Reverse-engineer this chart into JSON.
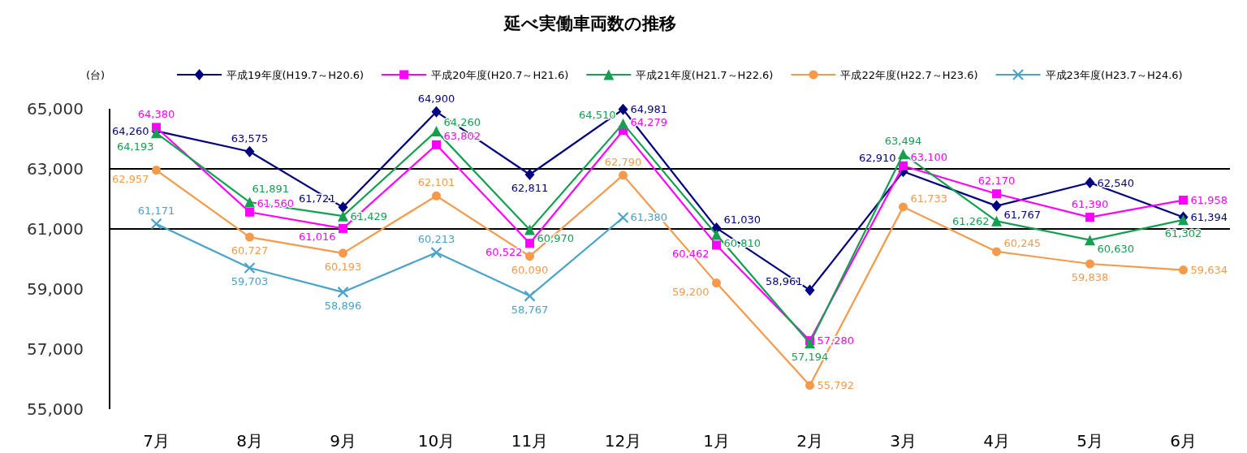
{
  "chart_data": {
    "type": "line",
    "title": "延べ実働車両数の推移",
    "ylabel": "(台)",
    "categories": [
      "7月",
      "8月",
      "9月",
      "10月",
      "11月",
      "12月",
      "1月",
      "2月",
      "3月",
      "4月",
      "5月",
      "6月"
    ],
    "ylim": [
      55000,
      65000
    ],
    "yticks": [
      {
        "value": 55000,
        "label": "55,000"
      },
      {
        "value": 57000,
        "label": "57,000"
      },
      {
        "value": 59000,
        "label": "59,000"
      },
      {
        "value": 61000,
        "label": "61,000"
      },
      {
        "value": 63000,
        "label": "63,000"
      },
      {
        "value": 65000,
        "label": "65,000"
      }
    ],
    "legend": "top",
    "ref_lines": [
      {
        "axis": "y",
        "value": 63000,
        "color": "#000000"
      },
      {
        "axis": "y",
        "value": 61000,
        "color": "#000000"
      }
    ],
    "series": [
      {
        "name": "平成19年度(H19.7～H20.6)",
        "color": "#000080",
        "marker": "diamond",
        "values": [
          64260,
          63575,
          61721,
          64900,
          62811,
          64981,
          61030,
          58961,
          62910,
          61767,
          62540,
          61394
        ],
        "value_labels": [
          "64,260",
          "63,575",
          "61,721",
          "64,900",
          "62,811",
          "64,981",
          "61,030",
          "58,961",
          "62,910",
          "61,767",
          "62,540",
          "61,394"
        ]
      },
      {
        "name": "平成20年度(H20.7～H21.6)",
        "color": "#ff00ff",
        "marker": "square",
        "values": [
          64380,
          61560,
          61016,
          63802,
          60522,
          64279,
          60462,
          57280,
          63100,
          62170,
          61390,
          61958
        ],
        "value_labels": [
          "64,380",
          "61,560",
          "61,016",
          "63,802",
          "60,522",
          "64,279",
          "60,462",
          "57,280",
          "63,100",
          "62,170",
          "61,390",
          "61,958"
        ]
      },
      {
        "name": "平成21年度(H21.7～H22.6)",
        "color": "#14a050",
        "marker": "triangle",
        "values": [
          64193,
          61891,
          61429,
          64260,
          60970,
          64510,
          60810,
          57194,
          63494,
          61262,
          60630,
          61302
        ],
        "value_labels": [
          "64,193",
          "61,891",
          "61,429",
          "64,260",
          "60,970",
          "64,510",
          "60,810",
          "57,194",
          "63,494",
          "61,262",
          "60,630",
          "61,302"
        ]
      },
      {
        "name": "平成22年度(H22.7～H23.6)",
        "color": "#f59a4b",
        "marker": "circle",
        "values": [
          62957,
          60727,
          60193,
          62101,
          60090,
          62790,
          59200,
          55792,
          61733,
          60245,
          59838,
          59634
        ],
        "value_labels": [
          "62,957",
          "60,727",
          "60,193",
          "62,101",
          "60,090",
          "62,790",
          "59,200",
          "55,792",
          "61,733",
          "60,245",
          "59,838",
          "59,634"
        ]
      },
      {
        "name": "平成23年度(H23.7～H24.6)",
        "color": "#4aa3c8",
        "marker": "cross",
        "values": [
          61171,
          59703,
          58896,
          60213,
          58767,
          61380,
          null,
          null,
          null,
          null,
          null,
          null
        ],
        "value_labels": [
          "61,171",
          "59,703",
          "58,896",
          "60,213",
          "58,767",
          "61,380",
          null,
          null,
          null,
          null,
          null,
          null
        ]
      }
    ]
  }
}
